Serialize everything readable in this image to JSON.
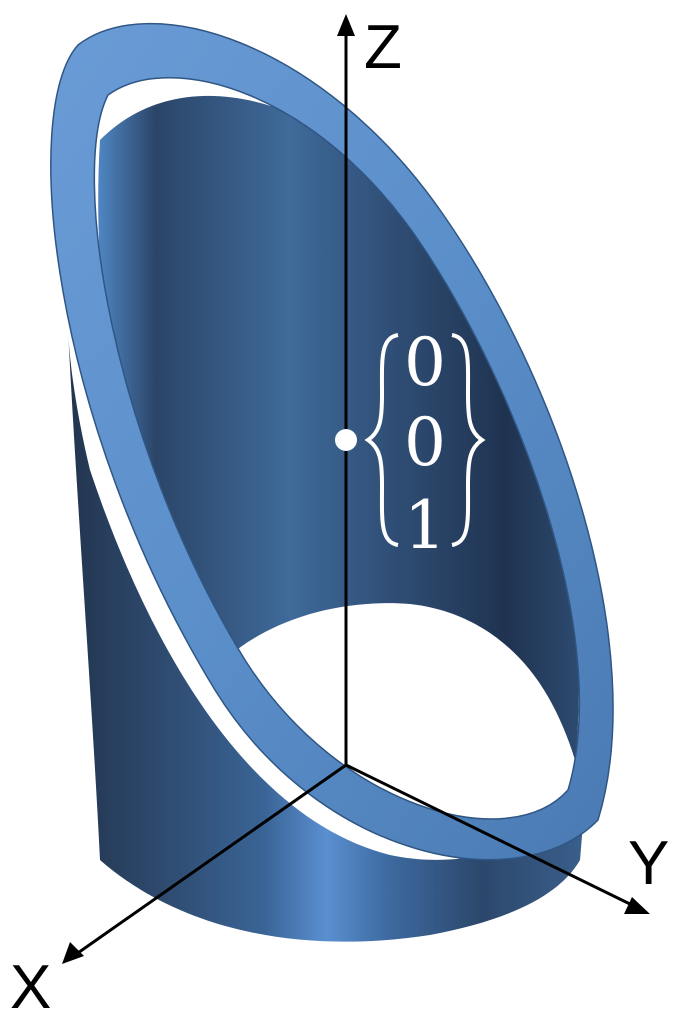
{
  "diagram": {
    "axes": {
      "z_label": "Z",
      "y_label": "Y",
      "x_label": "X"
    },
    "point_vector": {
      "entries": [
        "0",
        "0",
        "1"
      ]
    },
    "colors": {
      "tube_outer_dark": "#22354f",
      "tube_outer_mid": "#3a6496",
      "tube_outer_light": "#5a8fd0",
      "tube_inner_dark": "#1f3350",
      "tube_inner_mid": "#3f6a9a",
      "rim": "#5b8fca",
      "rim_edge": "#2f5684",
      "axis": "#000000",
      "point": "#ffffff",
      "vector_text": "#ffffff"
    }
  }
}
